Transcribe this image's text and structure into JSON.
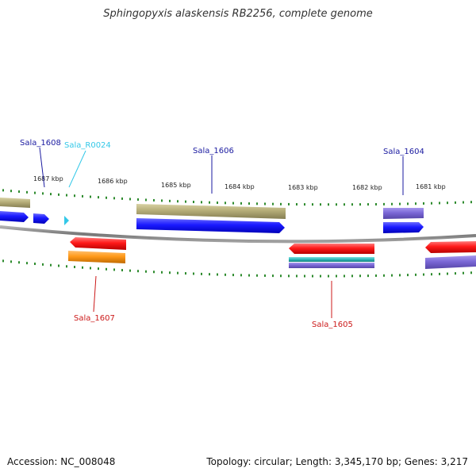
{
  "title": "Sphingopyxis alaskensis RB2256, complete genome",
  "footer": {
    "accession": "Accession: NC_008048",
    "summary": "Topology: circular; Length: 3,345,170 bp; Genes: 3,217"
  },
  "colors": {
    "backbone": "#8a8a8a",
    "tick": "#2e8b2e",
    "cds_forward": "#1a1aff",
    "cds_reverse": "#ff1a1a",
    "rrna_olive": "#b5ad78",
    "purple": "#7b68d6",
    "orange": "#ff9a1a",
    "teal": "#2ab7b7",
    "label_forward": "#1a1aa0",
    "label_reverse": "#cc1a1a",
    "label_rna": "#33c8e8"
  },
  "kbp_labels": [
    "1687 kbp",
    "1686 kbp",
    "1685 kbp",
    "1684 kbp",
    "1683 kbp",
    "1682 kbp",
    "1681 kbp"
  ],
  "gene_labels": [
    "Sala_1608",
    "Sala_R0024",
    "Sala_1606",
    "Sala_1604",
    "Sala_1607",
    "Sala_1605"
  ]
}
